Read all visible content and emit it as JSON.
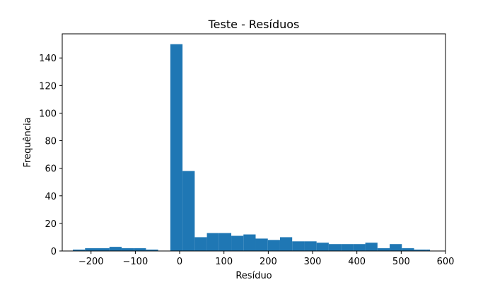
{
  "chart_data": {
    "type": "bar",
    "title": "Teste - Resíduos",
    "xlabel": "Resíduo",
    "ylabel": "Frequência",
    "xlim": [
      -265,
      600
    ],
    "ylim": [
      0,
      157.5
    ],
    "xticks": [
      -200,
      -100,
      0,
      100,
      200,
      300,
      400,
      500,
      600
    ],
    "xtick_labels": [
      "−200",
      "−100",
      "0",
      "100",
      "200",
      "300",
      "400",
      "500",
      "600"
    ],
    "yticks": [
      0,
      20,
      40,
      60,
      80,
      100,
      120,
      140
    ],
    "ytick_labels": [
      "0",
      "20",
      "40",
      "60",
      "80",
      "100",
      "120",
      "140"
    ],
    "bar_color": "#1f77b4",
    "bin_edges": [
      -241,
      -213.5,
      -186,
      -158.5,
      -131,
      -103.5,
      -76,
      -48.5,
      -21,
      6.5,
      34,
      61.5,
      89,
      116.5,
      144,
      171.5,
      199,
      226.5,
      254,
      281.5,
      309,
      336.5,
      364,
      391.5,
      419,
      446.5,
      474,
      501.5,
      529,
      556.5,
      565
    ],
    "values": [
      1,
      2,
      2,
      3,
      2,
      2,
      1,
      0,
      150,
      58,
      10,
      13,
      13,
      11,
      12,
      9,
      8,
      10,
      7,
      7,
      6,
      5,
      5,
      5,
      6,
      2,
      5,
      2,
      1,
      1
    ],
    "grid": false,
    "legend": "none"
  }
}
